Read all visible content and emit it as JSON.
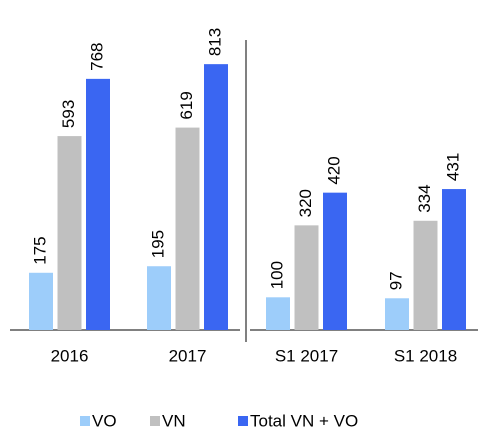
{
  "chart_data": {
    "type": "bar",
    "categories": [
      "2016",
      "2017",
      "S1 2017",
      "S1 2018"
    ],
    "series": [
      {
        "name": "VO",
        "color": "#9dcdfa",
        "values": [
          175,
          195,
          100,
          97
        ]
      },
      {
        "name": "VN",
        "color": "#c0c0c0",
        "values": [
          593,
          619,
          320,
          334
        ]
      },
      {
        "name": "Total VN + VO",
        "color": "#3a66f2",
        "values": [
          768,
          813,
          420,
          431
        ]
      }
    ]
  }
}
